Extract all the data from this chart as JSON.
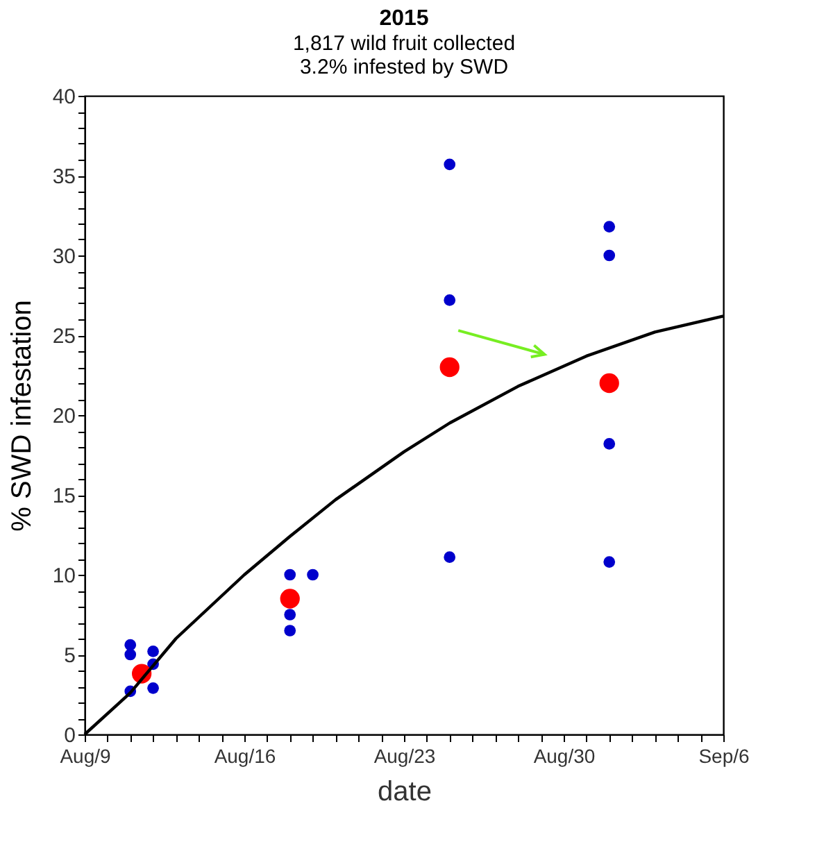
{
  "chart_data": {
    "type": "scatter",
    "title": "2015",
    "subtitle": [
      "1,817 wild fruit collected",
      "3.2% infested by SWD"
    ],
    "xlabel": "date",
    "ylabel": "% SWD infestation",
    "series": [
      {
        "type": "scatter",
        "color": "#0000cc",
        "x": [
          "2015-08-11",
          "2015-08-11",
          "2015-08-11",
          "2015-08-12",
          "2015-08-12",
          "2015-08-12",
          "2015-08-18",
          "2015-08-18",
          "2015-08-18",
          "2015-08-19",
          "2015-08-25",
          "2015-08-25",
          "2015-08-25",
          "2015-09-01",
          "2015-09-01",
          "2015-09-01",
          "2015-09-01"
        ],
        "values": [
          5.6,
          5.0,
          2.7,
          5.2,
          4.4,
          2.9,
          10.0,
          7.5,
          6.5,
          10.0,
          35.7,
          27.2,
          11.1,
          31.8,
          30.0,
          18.2,
          10.8
        ]
      },
      {
        "type": "scatter",
        "color": "#ff0000",
        "x": [
          "2015-08-11T12:00",
          "2015-08-18",
          "2015-08-25",
          "2015-09-01"
        ],
        "values": [
          3.8,
          8.5,
          23.0,
          22.0
        ]
      },
      {
        "type": "line",
        "marker": "none",
        "color": "#000000",
        "x": [
          "2015-08-09",
          "2015-08-11",
          "2015-08-13",
          "2015-08-16",
          "2015-08-18",
          "2015-08-20",
          "2015-08-23",
          "2015-08-25",
          "2015-08-28",
          "2015-08-31",
          "2015-09-03",
          "2015-09-06"
        ],
        "values": [
          0,
          2.6,
          6.0,
          10.0,
          12.4,
          14.7,
          17.7,
          19.5,
          21.8,
          23.7,
          25.2,
          26.2
        ]
      }
    ],
    "marker": "circle",
    "line_style": "solid",
    "grid": false,
    "xlim": [
      "2015-08-09",
      "2015-09-06"
    ],
    "xticks": [
      {
        "value": "2015-08-09",
        "label": "Aug/9"
      },
      {
        "value": "2015-08-10",
        "label": null
      },
      {
        "value": "2015-08-11",
        "label": null
      },
      {
        "value": "2015-08-12",
        "label": null
      },
      {
        "value": "2015-08-13",
        "label": null
      },
      {
        "value": "2015-08-14",
        "label": null
      },
      {
        "value": "2015-08-15",
        "label": null
      },
      {
        "value": "2015-08-16",
        "label": "Aug/16"
      },
      {
        "value": "2015-08-17",
        "label": null
      },
      {
        "value": "2015-08-18",
        "label": null
      },
      {
        "value": "2015-08-19",
        "label": null
      },
      {
        "value": "2015-08-20",
        "label": null
      },
      {
        "value": "2015-08-21",
        "label": null
      },
      {
        "value": "2015-08-22",
        "label": null
      },
      {
        "value": "2015-08-23",
        "label": "Aug/23"
      },
      {
        "value": "2015-08-24",
        "label": null
      },
      {
        "value": "2015-08-25",
        "label": null
      },
      {
        "value": "2015-08-26",
        "label": null
      },
      {
        "value": "2015-08-27",
        "label": null
      },
      {
        "value": "2015-08-28",
        "label": null
      },
      {
        "value": "2015-08-29",
        "label": null
      },
      {
        "value": "2015-08-30",
        "label": "Aug/30"
      },
      {
        "value": "2015-08-31",
        "label": null
      },
      {
        "value": "2015-09-01",
        "label": null
      },
      {
        "value": "2015-09-02",
        "label": null
      },
      {
        "value": "2015-09-03",
        "label": null
      },
      {
        "value": "2015-09-04",
        "label": null
      },
      {
        "value": "2015-09-05",
        "label": null
      },
      {
        "value": "2015-09-06",
        "label": "Sep/6"
      }
    ],
    "ylim": [
      0,
      40
    ],
    "yticks": [
      0,
      {
        "value": 1,
        "label": null
      },
      {
        "value": 2,
        "label": null
      },
      {
        "value": 3,
        "label": null
      },
      {
        "value": 4,
        "label": null
      },
      5,
      {
        "value": 6,
        "label": null
      },
      {
        "value": 7,
        "label": null
      },
      {
        "value": 8,
        "label": null
      },
      {
        "value": 9,
        "label": null
      },
      10,
      {
        "value": 11,
        "label": null
      },
      {
        "value": 12,
        "label": null
      },
      {
        "value": 13,
        "label": null
      },
      {
        "value": 14,
        "label": null
      },
      15,
      {
        "value": 16,
        "label": null
      },
      {
        "value": 17,
        "label": null
      },
      {
        "value": 18,
        "label": null
      },
      {
        "value": 19,
        "label": null
      },
      20,
      {
        "value": 21,
        "label": null
      },
      {
        "value": 22,
        "label": null
      },
      {
        "value": 23,
        "label": null
      },
      {
        "value": 24,
        "label": null
      },
      25,
      {
        "value": 26,
        "label": null
      },
      {
        "value": 27,
        "label": null
      },
      {
        "value": 28,
        "label": null
      },
      {
        "value": 29,
        "label": null
      },
      30,
      {
        "value": 31,
        "label": null
      },
      {
        "value": 32,
        "label": null
      },
      {
        "value": 33,
        "label": null
      },
      {
        "value": 34,
        "label": null
      },
      35,
      {
        "value": 36,
        "label": null
      },
      {
        "value": 37,
        "label": null
      },
      {
        "value": 38,
        "label": null
      },
      {
        "value": 39,
        "label": null
      },
      40
    ]
  }
}
